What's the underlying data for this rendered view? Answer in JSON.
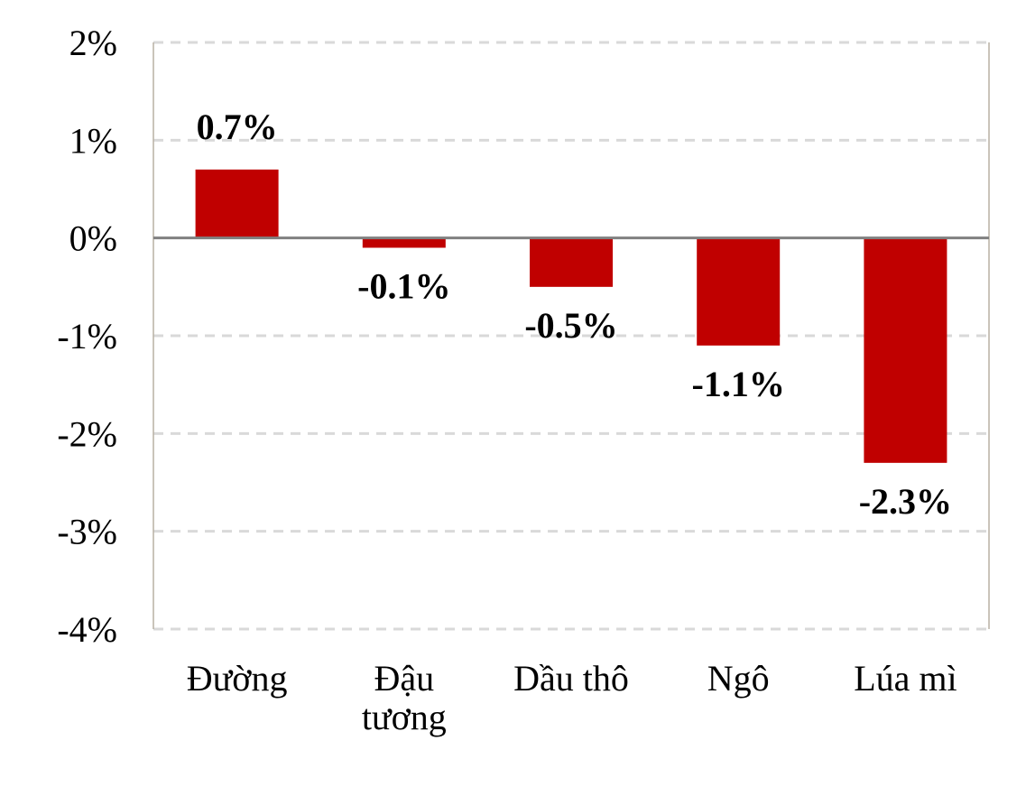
{
  "chart_data": {
    "type": "bar",
    "categories": [
      [
        "Đường"
      ],
      [
        "Đậu",
        "tương"
      ],
      [
        "Dầu thô"
      ],
      [
        "Ngô"
      ],
      [
        "Lúa mì"
      ]
    ],
    "values": [
      0.7,
      -0.1,
      -0.5,
      -1.1,
      -2.3
    ],
    "data_labels": [
      "0.7%",
      "-0.1%",
      "-0.5%",
      "-1.1%",
      "-2.3%"
    ],
    "y_ticks": [
      {
        "value": 2,
        "label": "2%"
      },
      {
        "value": 1,
        "label": "1%"
      },
      {
        "value": 0,
        "label": "0%"
      },
      {
        "value": -1,
        "label": "-1%"
      },
      {
        "value": -2,
        "label": "-2%"
      },
      {
        "value": -3,
        "label": "-3%"
      },
      {
        "value": -4,
        "label": "-4%"
      }
    ],
    "ylim": [
      -4,
      2
    ],
    "title": "",
    "xlabel": "",
    "ylabel": "",
    "grid": true,
    "grid_style": "dashed",
    "colors": {
      "bar": "#c00000",
      "gridline": "#d9d9d9",
      "zero_line": "#808080",
      "frame": "#b8b1a4"
    }
  }
}
